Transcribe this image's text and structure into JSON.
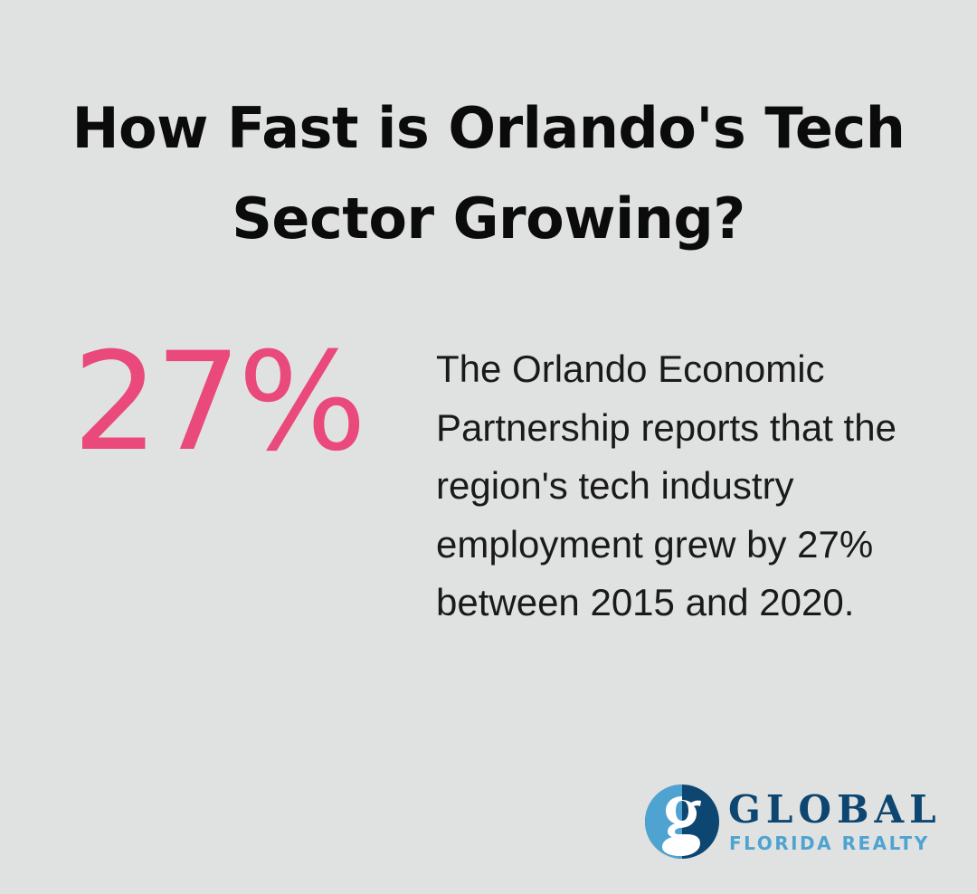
{
  "title": "How Fast is Orlando's Tech Sector Growing?",
  "stat": {
    "value": "27%",
    "color": "#e9497b"
  },
  "description": "The Orlando Economic Partnership reports that the region's tech industry employment grew by 27% between 2015 and 2020.",
  "logo": {
    "line1": "GLOBAL",
    "line2": "FLORIDA REALTY",
    "dark_color": "#0d4670",
    "light_color": "#4fa3d1"
  }
}
